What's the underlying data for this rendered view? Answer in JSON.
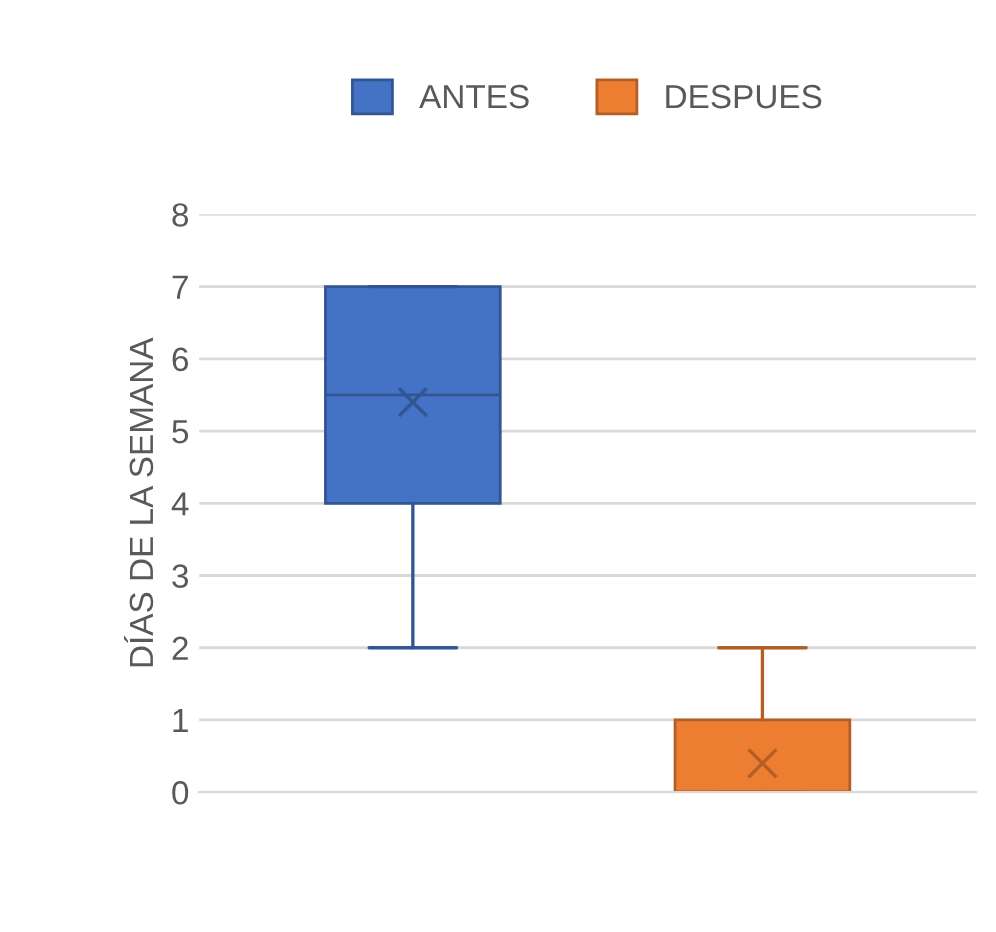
{
  "chart_data": {
    "type": "box",
    "ylabel": "DÍAS DE LA SEMANA",
    "categories": [
      null
    ],
    "series": [
      {
        "name": "ANTES",
        "color": "#4472c4",
        "boxes": [
          {
            "low": 2,
            "q1": 4,
            "median": 5.5,
            "q3": 7,
            "high": 7,
            "mean": 5.4
          }
        ]
      },
      {
        "name": "DESPUES",
        "color": "#ed7d31",
        "boxes": [
          {
            "low": 0,
            "q1": 0,
            "median": 0,
            "q3": 1,
            "high": 2,
            "mean": 0.4
          }
        ]
      }
    ],
    "ylim": [
      0,
      8
    ],
    "yticks": [
      0,
      1,
      2,
      3,
      4,
      5,
      6,
      7,
      8
    ],
    "grid": "y",
    "legend": "top"
  }
}
